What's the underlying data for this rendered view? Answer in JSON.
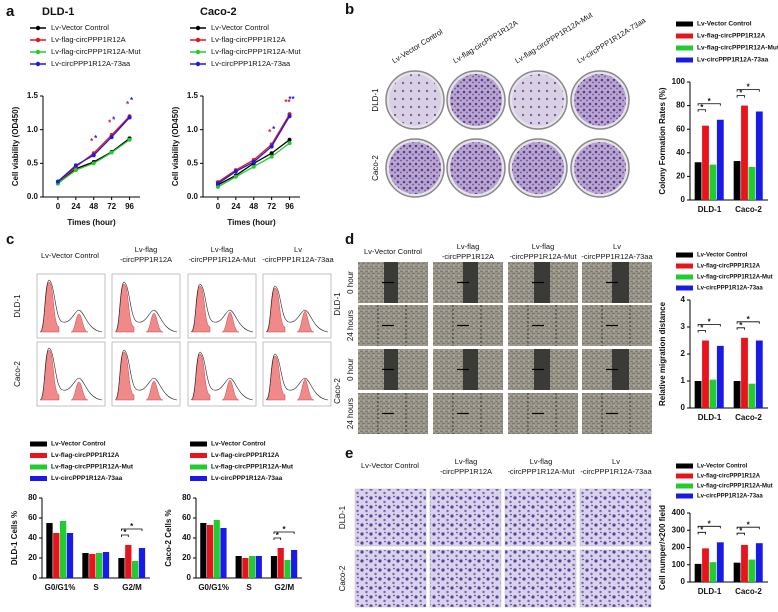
{
  "panel_labels": [
    "a",
    "b",
    "c",
    "d",
    "e"
  ],
  "images": {
    "b": {
      "columns": [
        [
          "Lv-Vector Control"
        ],
        [
          "Lv-flag-circPPP1R12A"
        ],
        [
          "Lv-flag-circPPP1R12A-Mut"
        ],
        [
          "Lv-circPPP1R12A-73aa"
        ]
      ],
      "rows": [
        {
          "name": "DLD-1"
        },
        {
          "name": "Caco-2"
        }
      ]
    },
    "c": {
      "columns": [
        [
          "Lv-Vector Control"
        ],
        [
          "Lv-flag",
          "-circPPP1R12A"
        ],
        [
          "Lv-flag",
          "-circPPP1R12A-Mut"
        ],
        [
          "Lv",
          "-circPPP1R12A-73aa"
        ]
      ],
      "rows": [
        {
          "name": "DLD-1"
        },
        {
          "name": "Caco-2"
        }
      ]
    },
    "d": {
      "columns": [
        [
          "Lv-Vector Control"
        ],
        [
          "Lv-flag",
          "-circPPP1R12A"
        ],
        [
          "Lv-flag",
          "-circPPP1R12A-Mut"
        ],
        [
          "Lv",
          "-circPPP1R12A-73aa"
        ]
      ],
      "rows": [
        {
          "name": "DLD-1",
          "times": [
            "0 hour",
            "24 hours"
          ]
        },
        {
          "name": "Caco-2",
          "times": [
            "0 hour",
            "24 hours"
          ]
        }
      ]
    },
    "e": {
      "columns": [
        [
          "Lv-Vector Control"
        ],
        [
          "Lv-flag",
          "-circPPP1R12A"
        ],
        [
          "Lv-flag",
          "-circPPP1R12A-Mut"
        ],
        [
          "Lv",
          "-circPPP1R12A-73aa"
        ]
      ],
      "rows": [
        {
          "name": "DLD-1"
        },
        {
          "name": "Caco-2"
        }
      ]
    }
  },
  "chart_data": [
    {
      "type": "line",
      "title": "DLD-1",
      "xlabel": "Times (hour)",
      "ylabel": "Cell viability (OD450)",
      "x": [
        0,
        24,
        48,
        72,
        96
      ],
      "xlim": [
        -20,
        110
      ],
      "xticks": [
        0,
        24,
        48,
        72,
        96
      ],
      "ylim": [
        0,
        1.5
      ],
      "yticks": [
        {
          "value": 0,
          "label": "0.0"
        },
        0.5,
        {
          "value": 1,
          "label": "1.0"
        },
        1.5
      ],
      "series": [
        {
          "name": "Lv-Vector Control",
          "color": "#000000",
          "values": [
            0.2,
            0.42,
            0.52,
            0.67,
            0.87
          ]
        },
        {
          "name": "Lv-flag-circPPP1R12A",
          "color": "#e8141b",
          "values": [
            0.22,
            0.45,
            0.65,
            0.92,
            1.2
          ],
          "significance": [
            null,
            null,
            "*",
            "*",
            "*"
          ]
        },
        {
          "name": "Lv-flag-circPPP1R12A-Mut",
          "color": "#22cc30",
          "values": [
            0.2,
            0.4,
            0.5,
            0.66,
            0.85
          ]
        },
        {
          "name": "Lv-circPPP1R12A-73aa",
          "color": "#1a1ae6",
          "values": [
            0.23,
            0.47,
            0.62,
            0.89,
            1.18
          ],
          "significance": [
            null,
            null,
            "*",
            "*",
            "*"
          ]
        }
      ]
    },
    {
      "type": "line",
      "title": "Caco-2",
      "xlabel": "Times (hour)",
      "ylabel": "Cell viability (OD450)",
      "x": [
        0,
        24,
        48,
        72,
        96
      ],
      "xlim": [
        -20,
        110
      ],
      "xticks": [
        0,
        24,
        48,
        72,
        96
      ],
      "ylim": [
        0,
        1.5
      ],
      "yticks": [
        {
          "value": 0,
          "label": "0.0"
        },
        0.5,
        {
          "value": 1,
          "label": "1.0"
        },
        1.5
      ],
      "series": [
        {
          "name": "Lv-Vector Control",
          "color": "#000000",
          "values": [
            0.18,
            0.32,
            0.5,
            0.65,
            0.85
          ]
        },
        {
          "name": "Lv-flag-circPPP1R12A",
          "color": "#e8141b",
          "values": [
            0.22,
            0.4,
            0.55,
            0.78,
            1.23
          ],
          "significance": [
            null,
            null,
            null,
            "*",
            "**"
          ]
        },
        {
          "name": "Lv-flag-circPPP1R12A-Mut",
          "color": "#22cc30",
          "values": [
            0.15,
            0.3,
            0.45,
            0.6,
            0.8
          ]
        },
        {
          "name": "Lv-circPPP1R12A-73aa",
          "color": "#1a1ae6",
          "values": [
            0.2,
            0.38,
            0.52,
            0.75,
            1.2
          ],
          "significance": [
            null,
            null,
            null,
            "*",
            "**"
          ]
        }
      ]
    },
    {
      "type": "bar",
      "ylabel": "Colony Formation Rates (%)",
      "categories": [
        "DLD-1",
        "Caco-2"
      ],
      "ylim": [
        0,
        100
      ],
      "yticks": [
        0,
        20,
        40,
        60,
        80,
        100
      ],
      "series": [
        {
          "name": "Lv-Vector Control",
          "color": "#000000",
          "values": [
            32,
            33
          ]
        },
        {
          "name": "Lv-flag-circPPP1R12A",
          "color": "#e8141b",
          "values": [
            63,
            80
          ]
        },
        {
          "name": "Lv-flag-circPPP1R12A-Mut",
          "color": "#22cc30",
          "values": [
            30,
            28
          ]
        },
        {
          "name": "Lv-circPPP1R12A-73aa",
          "color": "#1a1ae6",
          "values": [
            68,
            75
          ]
        }
      ],
      "significance": [
        {
          "category": 0,
          "series": [
            0,
            1
          ],
          "label": "*"
        },
        {
          "category": 0,
          "series": [
            0,
            3
          ],
          "label": "*"
        },
        {
          "category": 1,
          "series": [
            0,
            1
          ],
          "label": "*"
        },
        {
          "category": 1,
          "series": [
            0,
            3
          ],
          "label": "*"
        }
      ]
    },
    {
      "type": "bar",
      "ylabel": "DLD-1 Cells %",
      "categories": [
        "G0/G1%",
        "S",
        "G2/M"
      ],
      "ylim": [
        0,
        80
      ],
      "yticks": [
        0,
        20,
        40,
        60,
        80
      ],
      "series": [
        {
          "name": "Lv-Vector Control",
          "color": "#000000",
          "values": [
            55,
            25,
            20
          ]
        },
        {
          "name": "Lv-flag-circPPP1R12A",
          "color": "#e8141b",
          "values": [
            45,
            24,
            33
          ]
        },
        {
          "name": "Lv-flag-circPPP1R12A-Mut",
          "color": "#22cc30",
          "values": [
            57,
            25,
            17
          ]
        },
        {
          "name": "Lv-circPPP1R12A-73aa",
          "color": "#1a1ae6",
          "values": [
            45,
            26,
            30
          ]
        }
      ],
      "significance": [
        {
          "category": 2,
          "series": [
            0,
            1
          ],
          "label": "*"
        },
        {
          "category": 2,
          "series": [
            0,
            3
          ],
          "label": "*"
        }
      ]
    },
    {
      "type": "bar",
      "ylabel": "Caco-2 Cells %",
      "categories": [
        "G0/G1%",
        "S",
        "G2/M"
      ],
      "ylim": [
        0,
        80
      ],
      "yticks": [
        0,
        20,
        40,
        60,
        80
      ],
      "series": [
        {
          "name": "Lv-Vector Control",
          "color": "#000000",
          "values": [
            55,
            22,
            22
          ]
        },
        {
          "name": "Lv-flag-circPPP1R12A",
          "color": "#e8141b",
          "values": [
            53,
            20,
            30
          ]
        },
        {
          "name": "Lv-flag-circPPP1R12A-Mut",
          "color": "#22cc30",
          "values": [
            58,
            22,
            18
          ]
        },
        {
          "name": "Lv-circPPP1R12A-73aa",
          "color": "#1a1ae6",
          "values": [
            50,
            22,
            28
          ]
        }
      ],
      "significance": [
        {
          "category": 2,
          "series": [
            0,
            1
          ],
          "label": "*"
        },
        {
          "category": 2,
          "series": [
            0,
            3
          ],
          "label": "*"
        }
      ]
    },
    {
      "type": "bar",
      "ylabel": "Relative migration distance",
      "categories": [
        "DLD-1",
        "Caco-2"
      ],
      "ylim": [
        0,
        4
      ],
      "yticks": [
        0,
        1,
        2,
        3,
        4
      ],
      "series": [
        {
          "name": "Lv-Vector Control",
          "color": "#000000",
          "values": [
            1,
            1
          ]
        },
        {
          "name": "Lv-flag-circPPP1R12A",
          "color": "#e8141b",
          "values": [
            2.5,
            2.6
          ]
        },
        {
          "name": "Lv-flag-circPPP1R12A-Mut",
          "color": "#22cc30",
          "values": [
            1.05,
            0.9
          ]
        },
        {
          "name": "Lv-circPPP1R12A-73aa",
          "color": "#1a1ae6",
          "values": [
            2.3,
            2.5
          ]
        }
      ],
      "significance": [
        {
          "category": 0,
          "series": [
            0,
            1
          ],
          "label": "*"
        },
        {
          "category": 0,
          "series": [
            0,
            3
          ],
          "label": "*"
        },
        {
          "category": 1,
          "series": [
            0,
            1
          ],
          "label": "*"
        },
        {
          "category": 1,
          "series": [
            0,
            3
          ],
          "label": "*"
        }
      ]
    },
    {
      "type": "bar",
      "ylabel": "Cell numper/×200 field",
      "categories": [
        "DLD-1",
        "Caco-2"
      ],
      "ylim": [
        0,
        400
      ],
      "yticks": [
        0,
        100,
        200,
        300,
        400
      ],
      "series": [
        {
          "name": "Lv-Vector Control",
          "color": "#000000",
          "values": [
            105,
            112
          ]
        },
        {
          "name": "Lv-flag-circPPP1R12A",
          "color": "#e8141b",
          "values": [
            195,
            215
          ]
        },
        {
          "name": "Lv-flag-circPPP1R12A-Mut",
          "color": "#22cc30",
          "values": [
            115,
            130
          ]
        },
        {
          "name": "Lv-circPPP1R12A-73aa",
          "color": "#1a1ae6",
          "values": [
            230,
            225
          ]
        }
      ],
      "significance": [
        {
          "category": 0,
          "series": [
            0,
            1
          ],
          "label": "*"
        },
        {
          "category": 0,
          "series": [
            0,
            3
          ],
          "label": "*"
        },
        {
          "category": 1,
          "series": [
            0,
            1
          ],
          "label": "*"
        },
        {
          "category": 1,
          "series": [
            0,
            3
          ],
          "label": "*"
        }
      ]
    }
  ]
}
